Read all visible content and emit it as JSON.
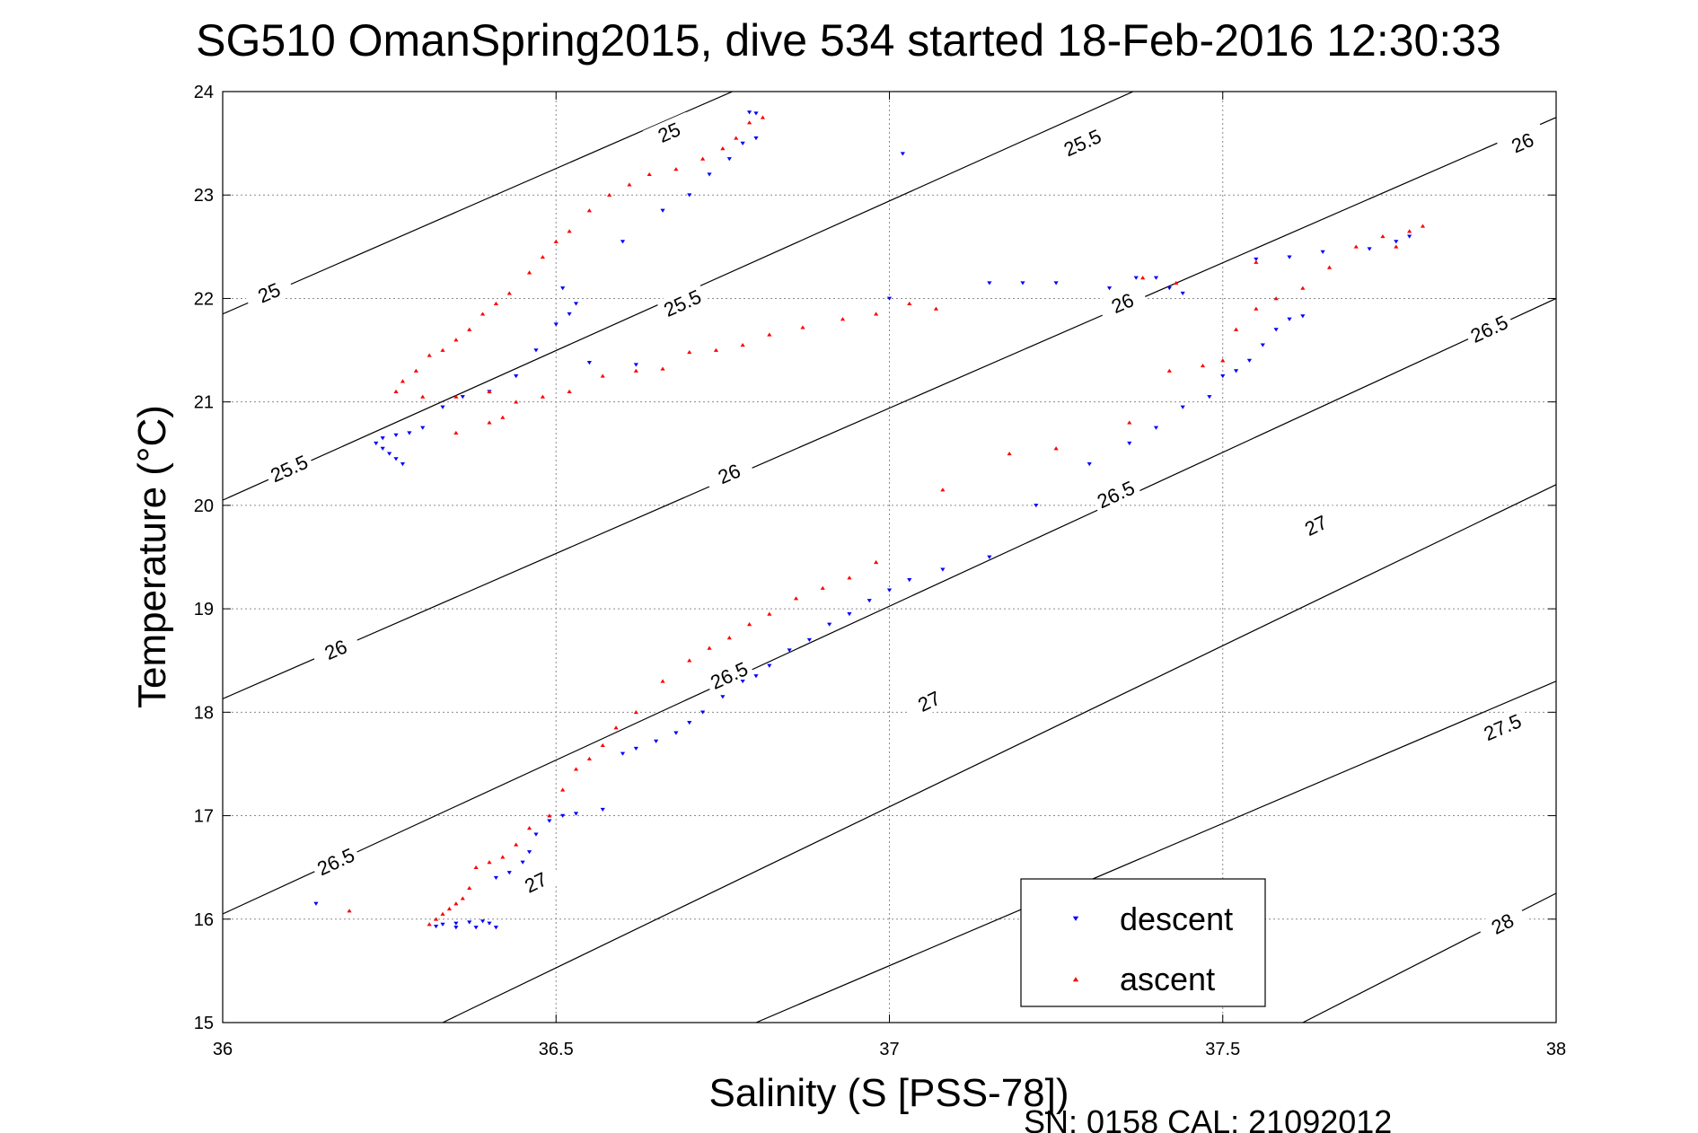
{
  "chart_data": {
    "type": "scatter",
    "title": "SG510 OmanSpring2015, dive 534 started 18-Feb-2016 12:30:33",
    "xlabel": "Salinity (S [PSS-78])",
    "ylabel": "Temperature (°C)",
    "xlim": [
      36,
      38
    ],
    "ylim": [
      15,
      24
    ],
    "x_ticks": [
      36,
      36.5,
      37,
      37.5,
      38
    ],
    "x_tick_labels": [
      "36",
      "36.5",
      "37",
      "37.5",
      "38"
    ],
    "y_ticks": [
      15,
      16,
      17,
      18,
      19,
      20,
      21,
      22,
      23,
      24
    ],
    "y_tick_labels": [
      "15",
      "16",
      "17",
      "18",
      "19",
      "20",
      "21",
      "22",
      "23",
      "24"
    ],
    "grid": true,
    "legend_position": "bottom-right",
    "footer": "SN: 0158  CAL: 21092012",
    "density_contours": [
      {
        "sigma": 25.0,
        "label": "25",
        "line": [
          [
            36.0,
            21.85
          ],
          [
            36.8,
            24.1
          ]
        ],
        "label_positions": [
          [
            36.07,
            22.05
          ],
          [
            36.67,
            23.6
          ]
        ]
      },
      {
        "sigma": 25.5,
        "label": "25.5",
        "line": [
          [
            36.0,
            20.05
          ],
          [
            37.4,
            24.1
          ]
        ],
        "label_positions": [
          [
            36.1,
            20.35
          ],
          [
            36.69,
            21.95
          ],
          [
            37.29,
            23.5
          ]
        ]
      },
      {
        "sigma": 26.0,
        "label": "26",
        "line": [
          [
            36.0,
            18.13
          ],
          [
            38.0,
            23.75
          ]
        ],
        "label_positions": [
          [
            36.17,
            18.6
          ],
          [
            36.76,
            20.3
          ],
          [
            37.35,
            21.95
          ],
          [
            37.95,
            23.5
          ]
        ]
      },
      {
        "sigma": 26.5,
        "label": "26.5",
        "line": [
          [
            36.0,
            16.05
          ],
          [
            38.0,
            22.0
          ]
        ],
        "label_positions": [
          [
            36.17,
            16.55
          ],
          [
            36.76,
            18.35
          ],
          [
            37.34,
            20.1
          ],
          [
            37.9,
            21.7
          ]
        ]
      },
      {
        "sigma": 27.0,
        "label": "27",
        "line": [
          [
            36.33,
            15.0
          ],
          [
            38.0,
            20.2
          ]
        ],
        "label_positions": [
          [
            36.47,
            16.35
          ],
          [
            37.06,
            18.1
          ],
          [
            37.64,
            19.8
          ]
        ]
      },
      {
        "sigma": 27.5,
        "label": "27.5",
        "line": [
          [
            36.8,
            15.0
          ],
          [
            38.0,
            18.3
          ]
        ],
        "label_positions": [
          [
            37.92,
            17.85
          ]
        ]
      },
      {
        "sigma": 28.0,
        "label": "28",
        "line": [
          [
            37.62,
            15.0
          ],
          [
            38.0,
            16.25
          ]
        ],
        "label_positions": [
          [
            37.92,
            15.95
          ]
        ]
      }
    ],
    "series": [
      {
        "name": "descent",
        "color": "#0000ff",
        "marker": "triangle-down",
        "points": [
          [
            36.32,
            15.93
          ],
          [
            36.33,
            15.95
          ],
          [
            36.35,
            15.96
          ],
          [
            36.37,
            15.97
          ],
          [
            36.39,
            15.98
          ],
          [
            36.4,
            15.96
          ],
          [
            36.35,
            15.92
          ],
          [
            36.38,
            15.92
          ],
          [
            36.41,
            15.92
          ],
          [
            36.41,
            16.4
          ],
          [
            36.43,
            16.45
          ],
          [
            36.45,
            16.55
          ],
          [
            36.46,
            16.65
          ],
          [
            36.47,
            16.82
          ],
          [
            36.49,
            16.95
          ],
          [
            36.51,
            17.0
          ],
          [
            36.53,
            17.02
          ],
          [
            36.57,
            17.06
          ],
          [
            36.6,
            17.6
          ],
          [
            36.62,
            17.65
          ],
          [
            36.65,
            17.72
          ],
          [
            36.68,
            17.8
          ],
          [
            36.7,
            17.9
          ],
          [
            36.72,
            18.0
          ],
          [
            36.75,
            18.15
          ],
          [
            36.78,
            18.3
          ],
          [
            36.8,
            18.35
          ],
          [
            36.82,
            18.45
          ],
          [
            36.85,
            18.6
          ],
          [
            36.88,
            18.7
          ],
          [
            36.91,
            18.85
          ],
          [
            36.94,
            18.95
          ],
          [
            36.97,
            19.08
          ],
          [
            37.0,
            19.18
          ],
          [
            37.03,
            19.28
          ],
          [
            37.08,
            19.38
          ],
          [
            37.15,
            19.5
          ],
          [
            37.22,
            20.0
          ],
          [
            37.3,
            20.4
          ],
          [
            37.36,
            20.6
          ],
          [
            37.4,
            20.75
          ],
          [
            37.44,
            20.95
          ],
          [
            37.48,
            21.05
          ],
          [
            37.5,
            21.25
          ],
          [
            37.52,
            21.3
          ],
          [
            37.54,
            21.4
          ],
          [
            37.56,
            21.55
          ],
          [
            37.58,
            21.7
          ],
          [
            37.6,
            21.8
          ],
          [
            37.62,
            21.83
          ],
          [
            37.55,
            22.38
          ],
          [
            37.6,
            22.4
          ],
          [
            37.65,
            22.45
          ],
          [
            37.72,
            22.48
          ],
          [
            37.76,
            22.55
          ],
          [
            37.78,
            22.6
          ],
          [
            36.14,
            16.15
          ],
          [
            36.23,
            20.6
          ],
          [
            36.24,
            20.55
          ],
          [
            36.25,
            20.5
          ],
          [
            36.26,
            20.45
          ],
          [
            36.27,
            20.4
          ],
          [
            36.24,
            20.65
          ],
          [
            36.26,
            20.68
          ],
          [
            36.28,
            20.7
          ],
          [
            36.3,
            20.75
          ],
          [
            36.33,
            20.95
          ],
          [
            36.36,
            21.05
          ],
          [
            36.4,
            21.1
          ],
          [
            36.44,
            21.25
          ],
          [
            36.47,
            21.5
          ],
          [
            36.5,
            21.75
          ],
          [
            36.52,
            21.85
          ],
          [
            36.51,
            22.1
          ],
          [
            36.53,
            21.95
          ],
          [
            36.6,
            22.55
          ],
          [
            36.66,
            22.85
          ],
          [
            36.7,
            23.0
          ],
          [
            36.73,
            23.2
          ],
          [
            36.76,
            23.35
          ],
          [
            36.78,
            23.5
          ],
          [
            36.8,
            23.55
          ],
          [
            36.79,
            23.8
          ],
          [
            36.8,
            23.79
          ],
          [
            37.02,
            23.4
          ],
          [
            37.15,
            22.15
          ],
          [
            37.2,
            22.15
          ],
          [
            37.25,
            22.15
          ],
          [
            37.33,
            22.1
          ],
          [
            37.37,
            22.2
          ],
          [
            37.4,
            22.2
          ],
          [
            37.42,
            22.1
          ],
          [
            37.44,
            22.05
          ],
          [
            36.55,
            21.38
          ],
          [
            36.62,
            21.36
          ],
          [
            37.0,
            22.0
          ]
        ]
      },
      {
        "name": "ascent",
        "color": "#ff0000",
        "marker": "triangle-up",
        "points": [
          [
            36.31,
            15.95
          ],
          [
            36.32,
            16.0
          ],
          [
            36.33,
            16.05
          ],
          [
            36.34,
            16.1
          ],
          [
            36.35,
            16.15
          ],
          [
            36.36,
            16.2
          ],
          [
            36.37,
            16.3
          ],
          [
            36.38,
            16.5
          ],
          [
            36.4,
            16.55
          ],
          [
            36.42,
            16.6
          ],
          [
            36.44,
            16.72
          ],
          [
            36.46,
            16.88
          ],
          [
            36.49,
            17.0
          ],
          [
            36.51,
            17.25
          ],
          [
            36.53,
            17.45
          ],
          [
            36.55,
            17.55
          ],
          [
            36.57,
            17.68
          ],
          [
            36.59,
            17.85
          ],
          [
            36.62,
            18.0
          ],
          [
            36.66,
            18.3
          ],
          [
            36.7,
            18.5
          ],
          [
            36.73,
            18.62
          ],
          [
            36.76,
            18.72
          ],
          [
            36.79,
            18.85
          ],
          [
            36.82,
            18.95
          ],
          [
            36.86,
            19.1
          ],
          [
            36.9,
            19.2
          ],
          [
            36.94,
            19.3
          ],
          [
            36.98,
            19.45
          ],
          [
            36.19,
            16.08
          ],
          [
            36.26,
            21.1
          ],
          [
            36.27,
            21.2
          ],
          [
            36.29,
            21.3
          ],
          [
            36.31,
            21.45
          ],
          [
            36.33,
            21.5
          ],
          [
            36.35,
            21.6
          ],
          [
            36.37,
            21.7
          ],
          [
            36.39,
            21.85
          ],
          [
            36.41,
            21.95
          ],
          [
            36.43,
            22.05
          ],
          [
            36.46,
            22.25
          ],
          [
            36.48,
            22.4
          ],
          [
            36.5,
            22.55
          ],
          [
            36.52,
            22.65
          ],
          [
            36.55,
            22.85
          ],
          [
            36.58,
            23.0
          ],
          [
            36.61,
            23.1
          ],
          [
            36.64,
            23.2
          ],
          [
            36.68,
            23.25
          ],
          [
            36.72,
            23.35
          ],
          [
            36.75,
            23.45
          ],
          [
            36.77,
            23.55
          ],
          [
            36.79,
            23.7
          ],
          [
            36.81,
            23.75
          ],
          [
            36.3,
            21.05
          ],
          [
            36.35,
            21.05
          ],
          [
            36.4,
            21.1
          ],
          [
            36.44,
            21.0
          ],
          [
            36.48,
            21.05
          ],
          [
            36.52,
            21.1
          ],
          [
            36.57,
            21.25
          ],
          [
            36.62,
            21.3
          ],
          [
            36.66,
            21.32
          ],
          [
            36.7,
            21.48
          ],
          [
            36.74,
            21.5
          ],
          [
            36.78,
            21.55
          ],
          [
            36.82,
            21.65
          ],
          [
            36.87,
            21.72
          ],
          [
            36.93,
            21.8
          ],
          [
            36.98,
            21.85
          ],
          [
            37.03,
            21.95
          ],
          [
            37.07,
            21.9
          ],
          [
            36.35,
            20.7
          ],
          [
            36.4,
            20.8
          ],
          [
            36.42,
            20.85
          ],
          [
            37.08,
            20.15
          ],
          [
            37.18,
            20.5
          ],
          [
            37.25,
            20.55
          ],
          [
            37.36,
            20.8
          ],
          [
            37.42,
            21.3
          ],
          [
            37.47,
            21.35
          ],
          [
            37.5,
            21.4
          ],
          [
            37.52,
            21.7
          ],
          [
            37.55,
            21.9
          ],
          [
            37.58,
            22.0
          ],
          [
            37.62,
            22.1
          ],
          [
            37.66,
            22.3
          ],
          [
            37.7,
            22.5
          ],
          [
            37.74,
            22.6
          ],
          [
            37.78,
            22.65
          ],
          [
            37.8,
            22.7
          ],
          [
            37.76,
            22.5
          ],
          [
            37.55,
            22.35
          ],
          [
            37.43,
            22.15
          ],
          [
            37.38,
            22.2
          ]
        ]
      }
    ]
  }
}
